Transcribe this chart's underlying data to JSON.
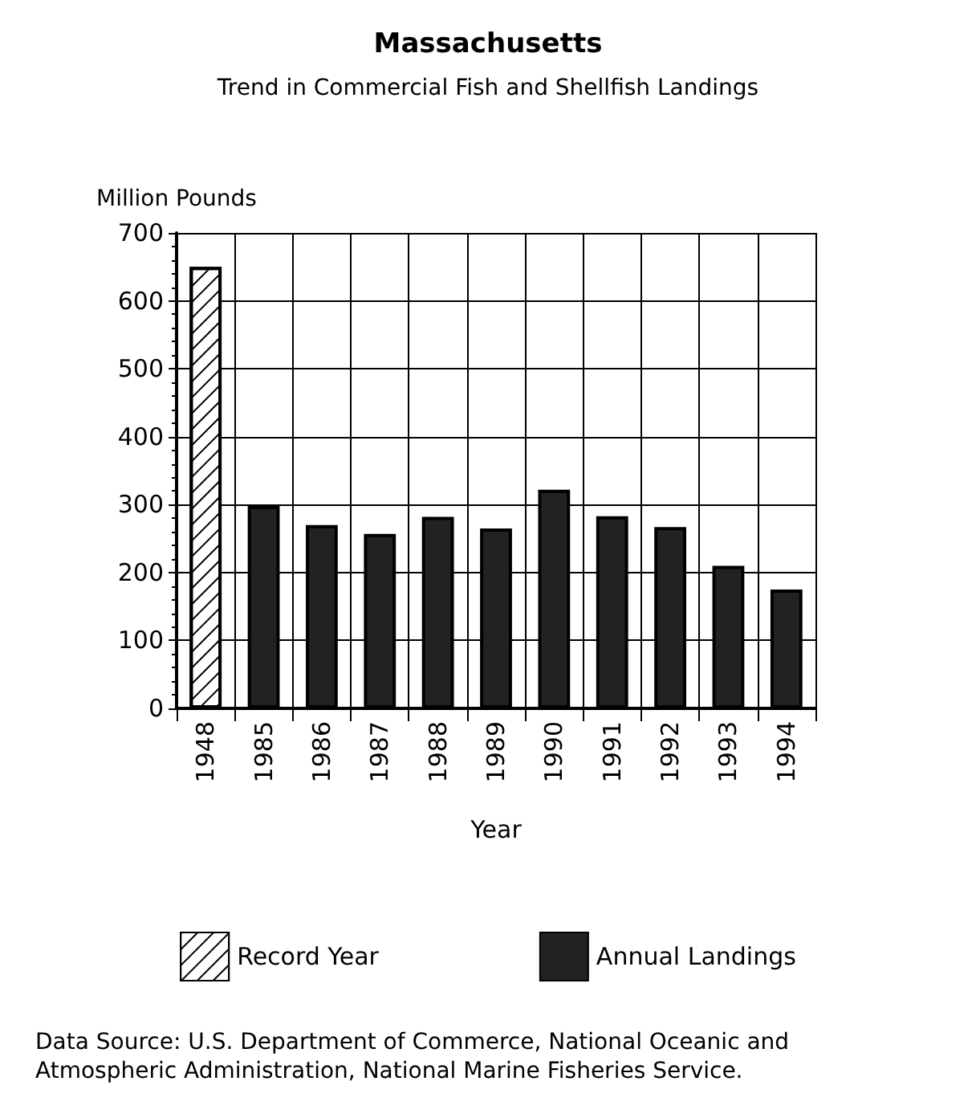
{
  "chart_data": {
    "type": "bar",
    "title": "Massachusetts",
    "subtitle": "Trend in Commercial Fish and Shellfish Landings",
    "ylabel": "Million Pounds",
    "xlabel": "Year",
    "categories": [
      "1948",
      "1985",
      "1986",
      "1987",
      "1988",
      "1989",
      "1990",
      "1991",
      "1992",
      "1993",
      "1994"
    ],
    "series": [
      {
        "name": "Record Year",
        "color": "#ffffff",
        "values": [
          650,
          null,
          null,
          null,
          null,
          null,
          null,
          null,
          null,
          null,
          null
        ]
      },
      {
        "name": "Annual Landings",
        "color": "#222222",
        "values": [
          null,
          298,
          270,
          257,
          282,
          265,
          322,
          283,
          267,
          210,
          175
        ]
      }
    ],
    "ylim": [
      0,
      700
    ],
    "yticks": [
      0,
      100,
      200,
      300,
      400,
      500,
      600,
      700
    ],
    "grid": true,
    "legend": "bottom",
    "annotations": [
      "Data Source: U.S. Department of Commerce, National Oceanic and Atmospheric Administration, National Marine Fisheries Service."
    ]
  }
}
